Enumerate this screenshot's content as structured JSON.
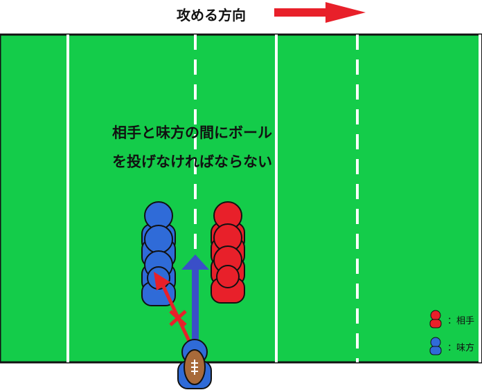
{
  "direction_label": "攻める方向",
  "caption": {
    "line1": "相手と味方の間にボール",
    "line2": "を投げなければならない"
  },
  "legend": {
    "opponent": "：相手",
    "teammate": "：味方"
  },
  "colors": {
    "field": "#14cc4a",
    "opponent": "#e8202a",
    "teammate": "#2f6bd8",
    "direction_arrow": "#e8202a",
    "illegal_pass": "#e8202a",
    "legal_run": "#3a4fc8",
    "ball": "#a86a3a"
  },
  "icons": {
    "direction": "right-arrow-icon",
    "illegal_pass": "red-arrow-with-x-icon",
    "legal_direction": "blue-up-arrow-icon",
    "ball": "rugby-ball-icon"
  }
}
